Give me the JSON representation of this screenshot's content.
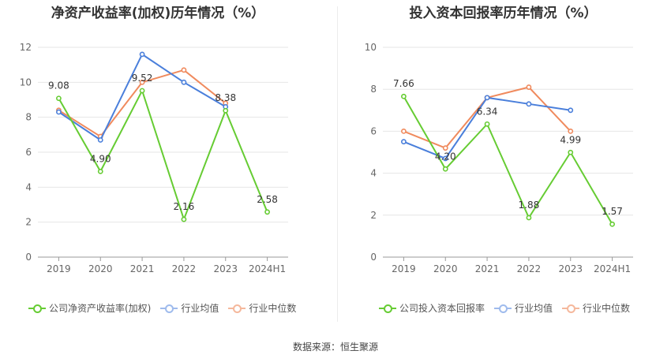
{
  "charts": [
    {
      "title": "净资产收益率(加权)历年情况（%）",
      "legend": {
        "company": "公司净资产收益率(加权)",
        "avg": "行业均值",
        "median": "行业中位数"
      }
    },
    {
      "title": "投入资本回报率历年情况（%）",
      "legend": {
        "company": "公司投入资本回报率",
        "avg": "行业均值",
        "median": "行业中位数"
      }
    }
  ],
  "footer": {
    "source": "数据来源：恒生聚源"
  },
  "colors": {
    "company": "#66cc33",
    "avg": "#4a7fdb",
    "median": "#f08a5d",
    "grid": "#e6e6e6",
    "axis": "#999999"
  },
  "chart_data": [
    {
      "type": "line",
      "title": "净资产收益率(加权)历年情况（%）",
      "categories": [
        "2019",
        "2020",
        "2021",
        "2022",
        "2023",
        "2024H1"
      ],
      "ylim": [
        0,
        12
      ],
      "yticks": [
        0,
        2,
        4,
        6,
        8,
        10,
        12
      ],
      "series": [
        {
          "name": "公司净资产收益率(加权)",
          "key": "company",
          "values": [
            9.08,
            4.9,
            9.52,
            2.16,
            8.38,
            2.58
          ],
          "labels": [
            "9.08",
            "4.90",
            "9.52",
            "2.16",
            "8.38",
            "2.58"
          ]
        },
        {
          "name": "行业均值",
          "key": "avg",
          "values": [
            8.3,
            6.7,
            11.6,
            10.0,
            8.6,
            null
          ]
        },
        {
          "name": "行业中位数",
          "key": "median",
          "values": [
            8.4,
            6.9,
            10.0,
            10.7,
            8.8,
            null
          ]
        }
      ]
    },
    {
      "type": "line",
      "title": "投入资本回报率历年情况（%）",
      "categories": [
        "2019",
        "2020",
        "2021",
        "2022",
        "2023",
        "2024H1"
      ],
      "ylim": [
        0,
        10
      ],
      "yticks": [
        0,
        2,
        4,
        6,
        8,
        10
      ],
      "series": [
        {
          "name": "公司投入资本回报率",
          "key": "company",
          "values": [
            7.66,
            4.2,
            6.34,
            1.88,
            4.99,
            1.57
          ],
          "labels": [
            "7.66",
            "4.20",
            "6.34",
            "1.88",
            "4.99",
            "1.57"
          ]
        },
        {
          "name": "行业均值",
          "key": "avg",
          "values": [
            5.5,
            4.7,
            7.6,
            7.3,
            7.0,
            null
          ]
        },
        {
          "name": "行业中位数",
          "key": "median",
          "values": [
            6.0,
            5.2,
            7.6,
            8.1,
            6.0,
            null
          ]
        }
      ]
    }
  ]
}
